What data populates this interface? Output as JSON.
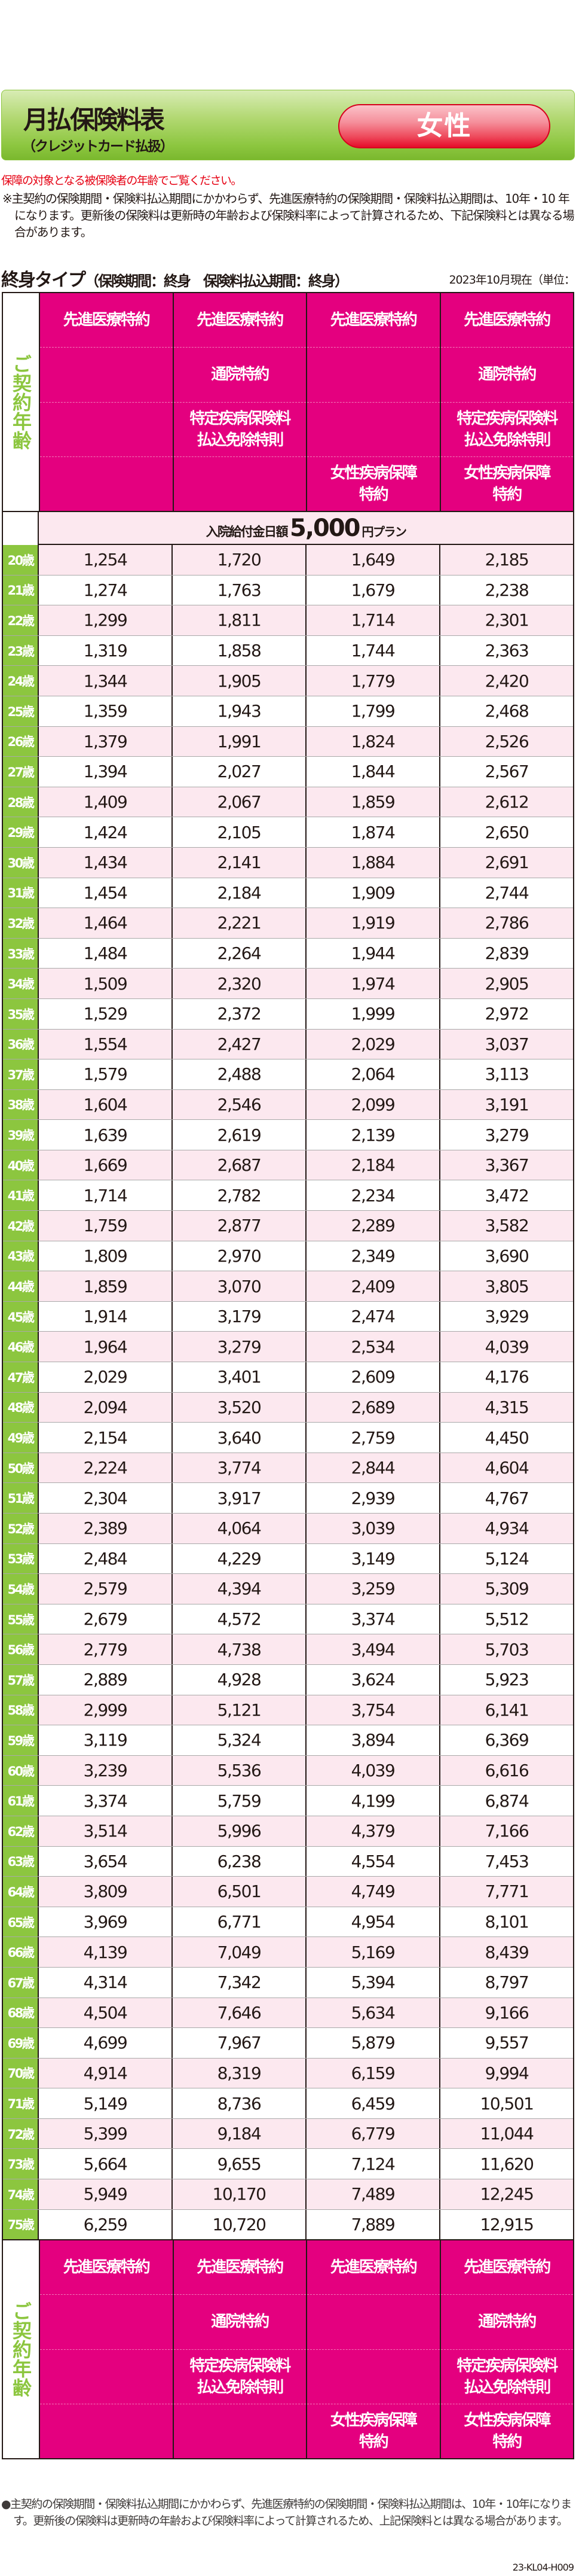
{
  "header": {
    "title": "月払保険料表",
    "subtitle": "（クレジットカード払扱）",
    "gender_button": "女性"
  },
  "caution": "保障の対象となる被保険者の年齢でご覧ください。",
  "note": "※主契約の保険期間・保険料払込期間にかかわらず、先進医療特約の保険期間・保険料払込期間は、10年・10 年になります。更新後の保険料は更新時の年齢および保険料率によって計算されるため、下記保険料とは異なる場合があります。",
  "section": {
    "type": "終身タイプ",
    "period": "（保険期間：終身　保険料払込期間：終身）",
    "date": "2023年10月現在（単位："
  },
  "table": {
    "age_header": "ご契約年齢",
    "columns": [
      {
        "items": [
          "先進医療特約",
          "",
          "",
          ""
        ]
      },
      {
        "items": [
          "先進医療特約",
          "通院特約",
          "特定疾病保険料\n払込免除特則",
          ""
        ]
      },
      {
        "items": [
          "先進医療特約",
          "",
          "",
          "女性疾病保障\n特約"
        ]
      },
      {
        "items": [
          "先進医療特約",
          "通院特約",
          "特定疾病保険料\n払込免除特則",
          "女性疾病保障\n特約"
        ]
      }
    ],
    "plan": {
      "prefix": "入院給付金日額",
      "amount": "5,000",
      "suffix": "円プラン"
    },
    "rows": [
      {
        "age": "20歳",
        "values": [
          "1,254",
          "1,720",
          "1,649",
          "2,185"
        ]
      },
      {
        "age": "21歳",
        "values": [
          "1,274",
          "1,763",
          "1,679",
          "2,238"
        ]
      },
      {
        "age": "22歳",
        "values": [
          "1,299",
          "1,811",
          "1,714",
          "2,301"
        ]
      },
      {
        "age": "23歳",
        "values": [
          "1,319",
          "1,858",
          "1,744",
          "2,363"
        ]
      },
      {
        "age": "24歳",
        "values": [
          "1,344",
          "1,905",
          "1,779",
          "2,420"
        ]
      },
      {
        "age": "25歳",
        "values": [
          "1,359",
          "1,943",
          "1,799",
          "2,468"
        ]
      },
      {
        "age": "26歳",
        "values": [
          "1,379",
          "1,991",
          "1,824",
          "2,526"
        ]
      },
      {
        "age": "27歳",
        "values": [
          "1,394",
          "2,027",
          "1,844",
          "2,567"
        ]
      },
      {
        "age": "28歳",
        "values": [
          "1,409",
          "2,067",
          "1,859",
          "2,612"
        ]
      },
      {
        "age": "29歳",
        "values": [
          "1,424",
          "2,105",
          "1,874",
          "2,650"
        ]
      },
      {
        "age": "30歳",
        "values": [
          "1,434",
          "2,141",
          "1,884",
          "2,691"
        ]
      },
      {
        "age": "31歳",
        "values": [
          "1,454",
          "2,184",
          "1,909",
          "2,744"
        ]
      },
      {
        "age": "32歳",
        "values": [
          "1,464",
          "2,221",
          "1,919",
          "2,786"
        ]
      },
      {
        "age": "33歳",
        "values": [
          "1,484",
          "2,264",
          "1,944",
          "2,839"
        ]
      },
      {
        "age": "34歳",
        "values": [
          "1,509",
          "2,320",
          "1,974",
          "2,905"
        ]
      },
      {
        "age": "35歳",
        "values": [
          "1,529",
          "2,372",
          "1,999",
          "2,972"
        ]
      },
      {
        "age": "36歳",
        "values": [
          "1,554",
          "2,427",
          "2,029",
          "3,037"
        ]
      },
      {
        "age": "37歳",
        "values": [
          "1,579",
          "2,488",
          "2,064",
          "3,113"
        ]
      },
      {
        "age": "38歳",
        "values": [
          "1,604",
          "2,546",
          "2,099",
          "3,191"
        ]
      },
      {
        "age": "39歳",
        "values": [
          "1,639",
          "2,619",
          "2,139",
          "3,279"
        ]
      },
      {
        "age": "40歳",
        "values": [
          "1,669",
          "2,687",
          "2,184",
          "3,367"
        ]
      },
      {
        "age": "41歳",
        "values": [
          "1,714",
          "2,782",
          "2,234",
          "3,472"
        ]
      },
      {
        "age": "42歳",
        "values": [
          "1,759",
          "2,877",
          "2,289",
          "3,582"
        ]
      },
      {
        "age": "43歳",
        "values": [
          "1,809",
          "2,970",
          "2,349",
          "3,690"
        ]
      },
      {
        "age": "44歳",
        "values": [
          "1,859",
          "3,070",
          "2,409",
          "3,805"
        ]
      },
      {
        "age": "45歳",
        "values": [
          "1,914",
          "3,179",
          "2,474",
          "3,929"
        ]
      },
      {
        "age": "46歳",
        "values": [
          "1,964",
          "3,279",
          "2,534",
          "4,039"
        ]
      },
      {
        "age": "47歳",
        "values": [
          "2,029",
          "3,401",
          "2,609",
          "4,176"
        ]
      },
      {
        "age": "48歳",
        "values": [
          "2,094",
          "3,520",
          "2,689",
          "4,315"
        ]
      },
      {
        "age": "49歳",
        "values": [
          "2,154",
          "3,640",
          "2,759",
          "4,450"
        ]
      },
      {
        "age": "50歳",
        "values": [
          "2,224",
          "3,774",
          "2,844",
          "4,604"
        ]
      },
      {
        "age": "51歳",
        "values": [
          "2,304",
          "3,917",
          "2,939",
          "4,767"
        ]
      },
      {
        "age": "52歳",
        "values": [
          "2,389",
          "4,064",
          "3,039",
          "4,934"
        ]
      },
      {
        "age": "53歳",
        "values": [
          "2,484",
          "4,229",
          "3,149",
          "5,124"
        ]
      },
      {
        "age": "54歳",
        "values": [
          "2,579",
          "4,394",
          "3,259",
          "5,309"
        ]
      },
      {
        "age": "55歳",
        "values": [
          "2,679",
          "4,572",
          "3,374",
          "5,512"
        ]
      },
      {
        "age": "56歳",
        "values": [
          "2,779",
          "4,738",
          "3,494",
          "5,703"
        ]
      },
      {
        "age": "57歳",
        "values": [
          "2,889",
          "4,928",
          "3,624",
          "5,923"
        ]
      },
      {
        "age": "58歳",
        "values": [
          "2,999",
          "5,121",
          "3,754",
          "6,141"
        ]
      },
      {
        "age": "59歳",
        "values": [
          "3,119",
          "5,324",
          "3,894",
          "6,369"
        ]
      },
      {
        "age": "60歳",
        "values": [
          "3,239",
          "5,536",
          "4,039",
          "6,616"
        ]
      },
      {
        "age": "61歳",
        "values": [
          "3,374",
          "5,759",
          "4,199",
          "6,874"
        ]
      },
      {
        "age": "62歳",
        "values": [
          "3,514",
          "5,996",
          "4,379",
          "7,166"
        ]
      },
      {
        "age": "63歳",
        "values": [
          "3,654",
          "6,238",
          "4,554",
          "7,453"
        ]
      },
      {
        "age": "64歳",
        "values": [
          "3,809",
          "6,501",
          "4,749",
          "7,771"
        ]
      },
      {
        "age": "65歳",
        "values": [
          "3,969",
          "6,771",
          "4,954",
          "8,101"
        ]
      },
      {
        "age": "66歳",
        "values": [
          "4,139",
          "7,049",
          "5,169",
          "8,439"
        ]
      },
      {
        "age": "67歳",
        "values": [
          "4,314",
          "7,342",
          "5,394",
          "8,797"
        ]
      },
      {
        "age": "68歳",
        "values": [
          "4,504",
          "7,646",
          "5,634",
          "9,166"
        ]
      },
      {
        "age": "69歳",
        "values": [
          "4,699",
          "7,967",
          "5,879",
          "9,557"
        ]
      },
      {
        "age": "70歳",
        "values": [
          "4,914",
          "8,319",
          "6,159",
          "9,994"
        ]
      },
      {
        "age": "71歳",
        "values": [
          "5,149",
          "8,736",
          "6,459",
          "10,501"
        ]
      },
      {
        "age": "72歳",
        "values": [
          "5,399",
          "9,184",
          "6,779",
          "11,044"
        ]
      },
      {
        "age": "73歳",
        "values": [
          "5,664",
          "9,655",
          "7,124",
          "11,620"
        ]
      },
      {
        "age": "74歳",
        "values": [
          "5,949",
          "10,170",
          "7,489",
          "12,245"
        ]
      },
      {
        "age": "75歳",
        "values": [
          "6,259",
          "10,720",
          "7,889",
          "12,915"
        ]
      }
    ]
  },
  "footnote": "●主契約の保険期間・保険料払込期間にかかわらず、先進医療特約の保険期間・保険料払込期間は、10年・10年になります。更新後の保険料は更新時の年齢および保険料率によって計算されるため、上記保険料とは異なる場合があります。",
  "doc_code": "23-KL04-H009",
  "colors": {
    "green": "#8cc63f",
    "magenta": "#e4007f",
    "row_pink": "#fce8ef",
    "caution_red": "#e60012"
  }
}
